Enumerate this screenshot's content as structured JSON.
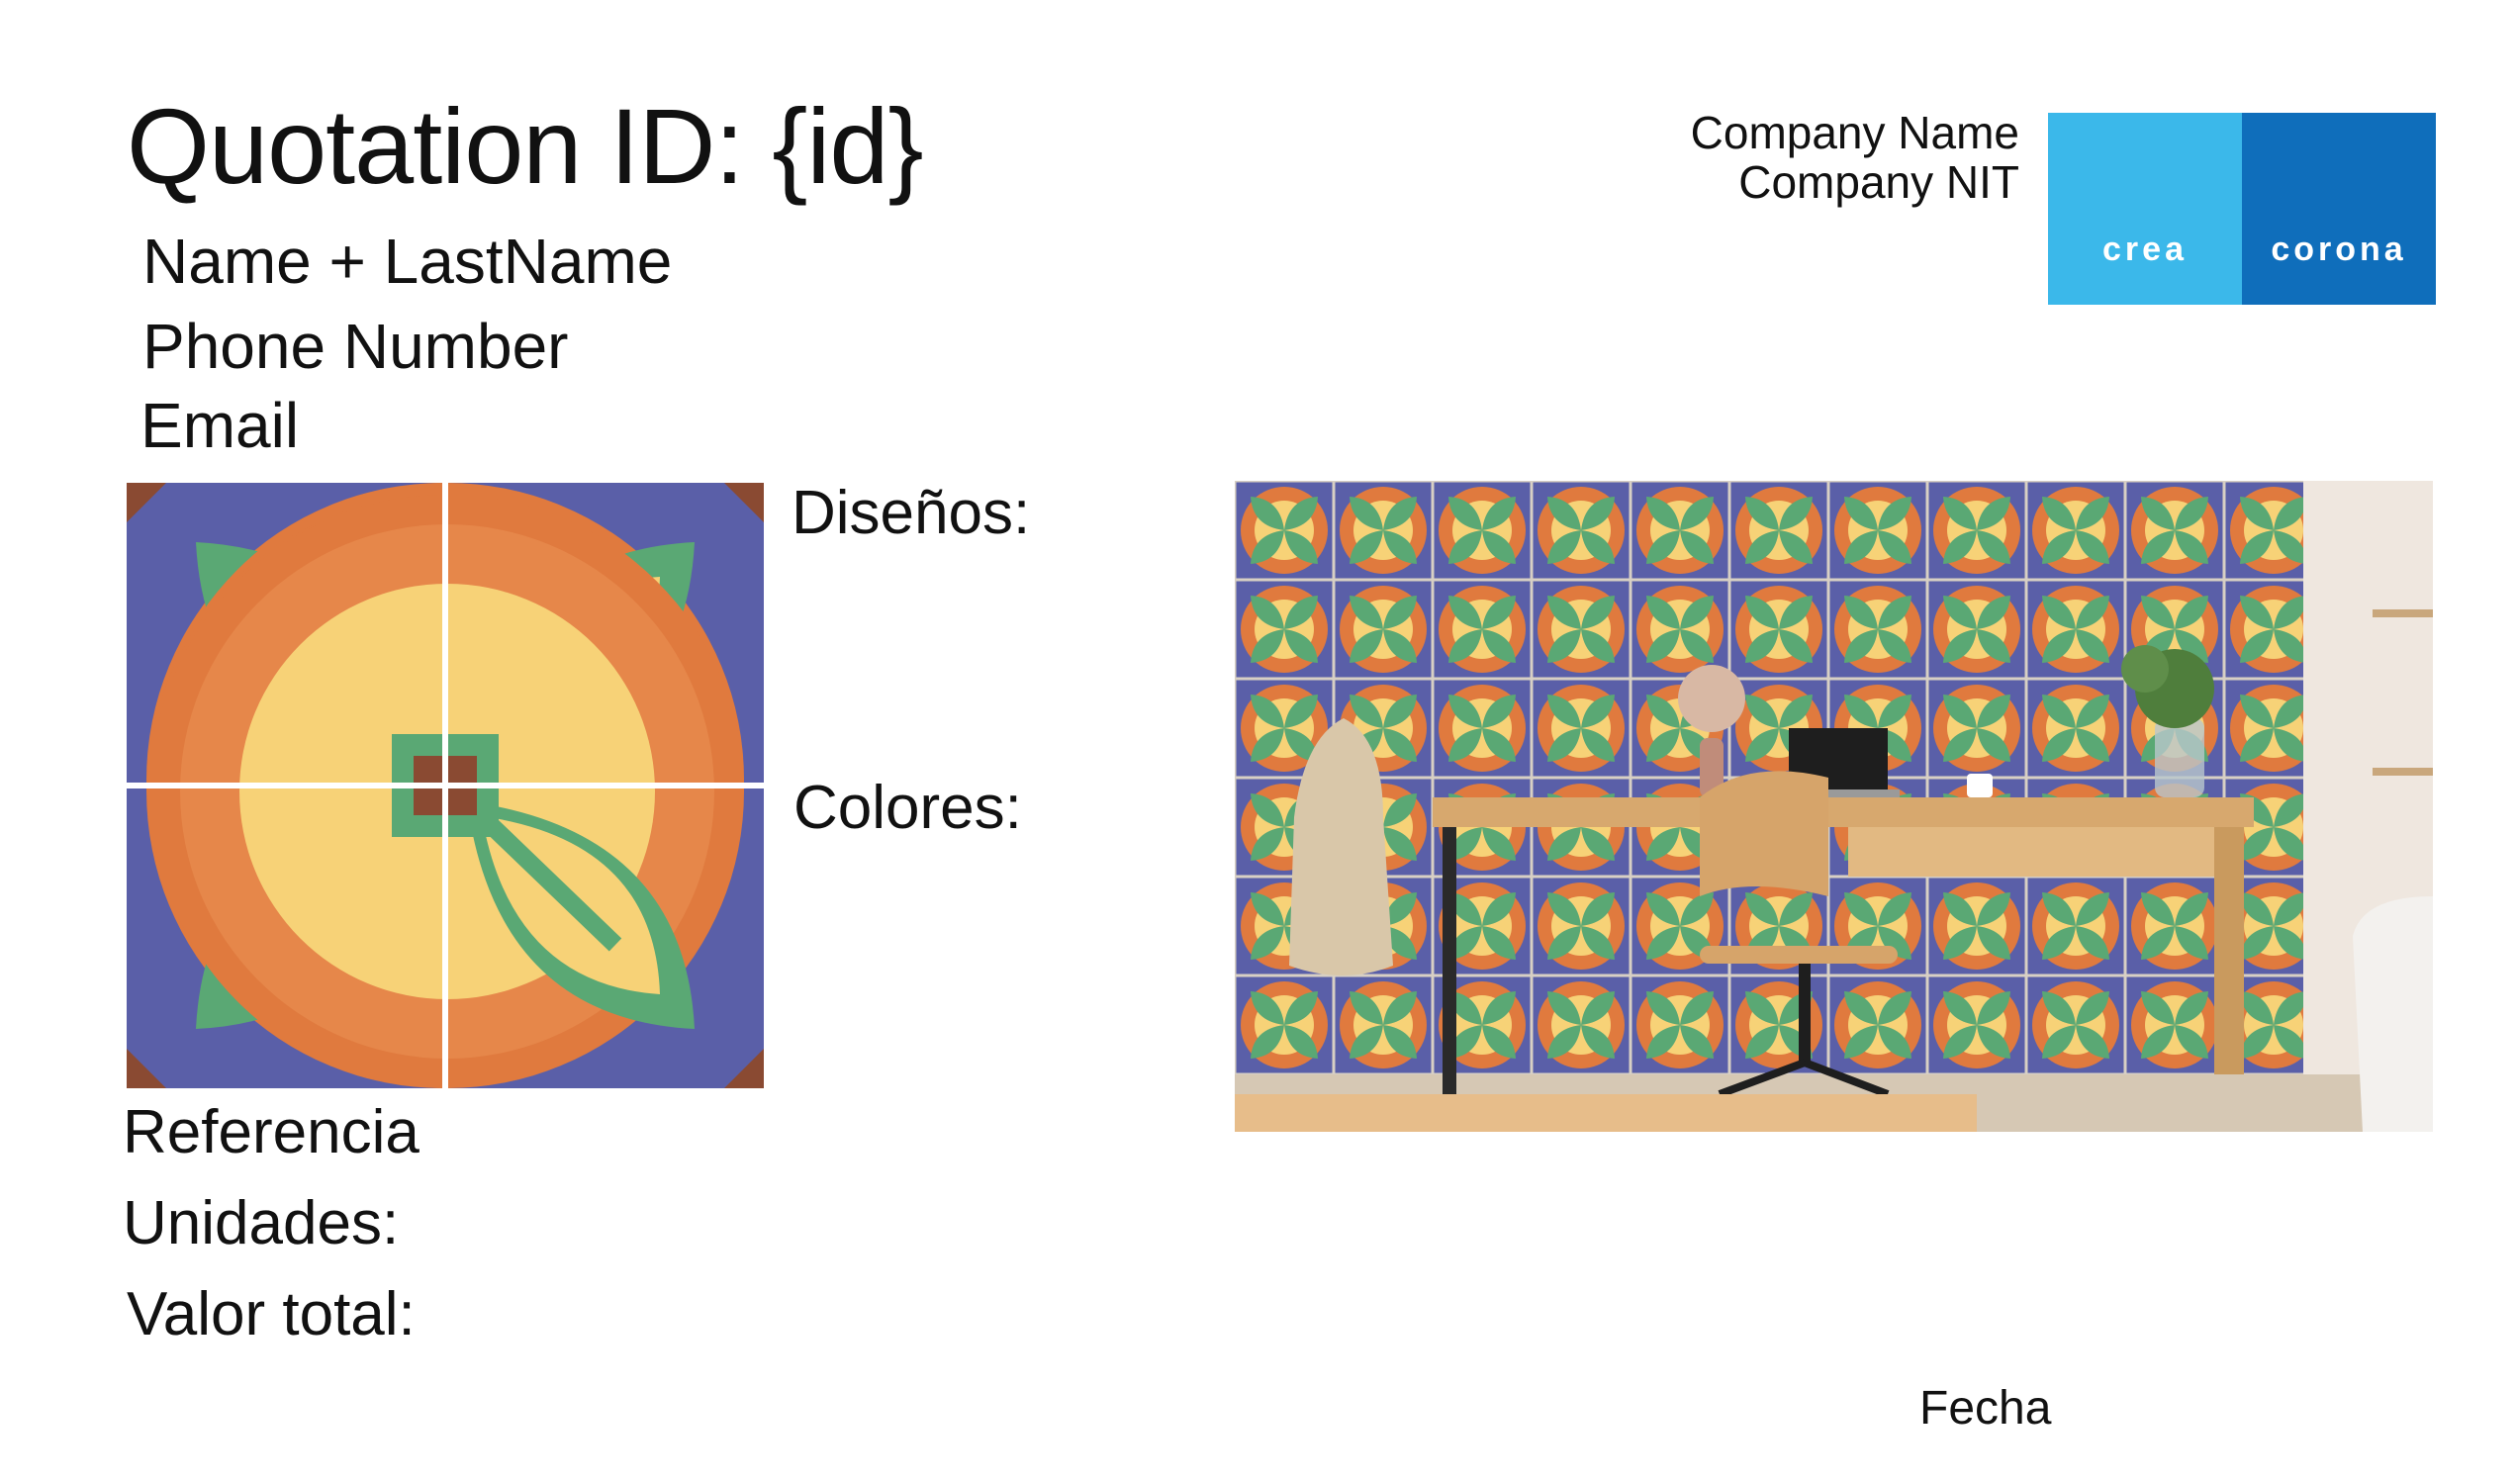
{
  "quotation": {
    "title": "Quotation ID: {id}"
  },
  "customer": {
    "name": "Name + LastName",
    "phone": "Phone Number",
    "email": "Email"
  },
  "company": {
    "name": "Company Name",
    "nit": "Company NIT"
  },
  "logo": {
    "left_text": "crea",
    "right_text": "corona",
    "left_color": "#3bb8ea",
    "right_color": "#0f6ebb"
  },
  "labels": {
    "designs": "Diseños:",
    "colors": "Colores:",
    "reference": "Referencia",
    "units": "Unidades:",
    "total": "Valor total:"
  },
  "footer": {
    "date": "Fecha"
  },
  "tile_colors": {
    "blue": "#5a5fa8",
    "orange": "#e07a3e",
    "yellow": "#f7d277",
    "green": "#5aa874",
    "brown": "#8a4a32"
  },
  "icons": {
    "tile": "patterned-tile-image",
    "room": "room-preview-image"
  }
}
